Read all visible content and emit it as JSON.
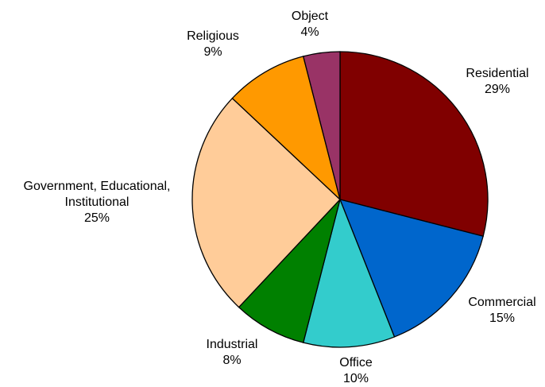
{
  "chart_data": {
    "type": "pie",
    "title": "",
    "start_angle_deg": 0,
    "direction": "clockwise",
    "slices": [
      {
        "label_lines": [
          "Residential"
        ],
        "value_label": "29%",
        "value": 29,
        "color": "#800000"
      },
      {
        "label_lines": [
          "Commercial"
        ],
        "value_label": "15%",
        "value": 15,
        "color": "#0066CC"
      },
      {
        "label_lines": [
          "Office"
        ],
        "value_label": "10%",
        "value": 10,
        "color": "#33CCCC"
      },
      {
        "label_lines": [
          "Industrial"
        ],
        "value_label": "8%",
        "value": 8,
        "color": "#008000"
      },
      {
        "label_lines": [
          "Government, Educational,",
          "Institutional"
        ],
        "value_label": "25%",
        "value": 25,
        "color": "#FFCC99"
      },
      {
        "label_lines": [
          "Religious"
        ],
        "value_label": "9%",
        "value": 9,
        "color": "#FF9900"
      },
      {
        "label_lines": [
          "Object"
        ],
        "value_label": "4%",
        "value": 4,
        "color": "#993366"
      }
    ]
  }
}
